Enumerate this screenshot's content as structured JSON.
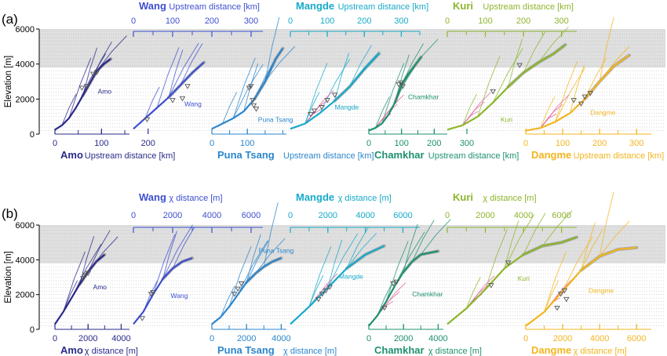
{
  "panel_labels": [
    "(a)",
    "(b)"
  ],
  "colors": {
    "Amo": "#2a2a8a",
    "Wang": "#3d4fcf",
    "Puna Tsang": "#2b86cc",
    "Mangde": "#16aac9",
    "Chamkhar": "#1e9070",
    "Kuri": "#8db52c",
    "Dangme": "#f2b51f",
    "trunk": "#777777",
    "knickpoint": "#555555",
    "pink": "#e0609a",
    "band_dark": "#dcdcdc",
    "band_light": "#f1f1f1"
  },
  "chart_data": [
    {
      "type": "line",
      "panel": "(a)",
      "ylabel": "Elevation [m]",
      "yticks": [
        0,
        2000,
        4000,
        6000
      ],
      "ylim": [
        0,
        6000
      ],
      "gray_band_elevation": [
        3800,
        6000
      ],
      "dotted_band_elevation": [
        0,
        6000
      ],
      "bottom_axis_title": "Upstream distance [km]",
      "top_axis_title": "Upstream distance [km]",
      "series": [
        {
          "name": "Amo",
          "axis": "bottom",
          "ticks": [
            "0",
            "100",
            "200"
          ],
          "tick_values": [
            0,
            100,
            200
          ],
          "max": 160,
          "main": {
            "x": [
              0,
              15,
              30,
              45,
              60,
              75,
              90,
              105,
              120
            ],
            "y": [
              250,
              500,
              900,
              1500,
              2200,
              2900,
              3600,
              4000,
              4300
            ]
          },
          "tribs": 6,
          "knickpoints": [
            [
              58,
              2600
            ],
            [
              68,
              2700
            ],
            [
              82,
              3400
            ],
            [
              90,
              3500
            ]
          ],
          "label": "Amo",
          "label_at": [
            92,
            2300
          ]
        },
        {
          "name": "Wang",
          "axis": "top",
          "ticks": [
            "0",
            "100",
            "200",
            "300"
          ],
          "tick_values": [
            0,
            100,
            200,
            300
          ],
          "max": 330,
          "main": {
            "x": [
              200,
              230,
              260,
              290,
              320,
              350,
              380
            ],
            "y": [
              300,
              900,
              1500,
              2100,
              2800,
              3500,
              4100
            ]
          },
          "tribs": 5,
          "knickpoints": [
            [
              235,
              800
            ],
            [
              300,
              1900
            ],
            [
              325,
              2000
            ],
            [
              338,
              2700
            ]
          ],
          "label": "Wang",
          "label_at": [
            330,
            1600
          ]
        },
        {
          "name": "Puna Tsang",
          "axis": "bottom",
          "ticks": [
            "0",
            "100"
          ],
          "tick_values": [
            0,
            100
          ],
          "max": 210,
          "main": {
            "x": [
              0,
              30,
              60,
              90,
              120,
              150,
              180,
              200
            ],
            "y": [
              300,
              600,
              900,
              1300,
              2000,
              3000,
              4300,
              4900
            ]
          },
          "tribs": 7,
          "knickpoints": [
            [
              105,
              2600
            ],
            [
              110,
              2700
            ],
            [
              115,
              1900
            ],
            [
              118,
              1600
            ],
            [
              125,
              1400
            ]
          ],
          "label": "Puna Tsang",
          "label_at": [
            130,
            700
          ]
        },
        {
          "name": "Mangde",
          "axis": "top",
          "ticks": [
            "0",
            "100",
            "200",
            "300"
          ],
          "tick_values": [
            0,
            100,
            200,
            300
          ],
          "max": 350,
          "main": {
            "x": [
              200,
              240,
              280,
              320,
              360,
              400,
              440
            ],
            "y": [
              300,
              600,
              1200,
              1900,
              2700,
              3700,
              4600
            ]
          },
          "tribs": 6,
          "knickpoints": [
            [
              255,
              1100
            ],
            [
              265,
              1300
            ],
            [
              285,
              1500
            ],
            [
              300,
              1900
            ],
            [
              320,
              2200
            ]
          ],
          "label": "Mangde",
          "label_at": [
            320,
            1400
          ]
        },
        {
          "name": "Chamkhar",
          "axis": "bottom",
          "ticks": [
            "0",
            "100",
            "200",
            "300"
          ],
          "tick_values": [
            0,
            100,
            200,
            300
          ],
          "max": 240,
          "main": {
            "x": [
              0,
              20,
              40,
              60,
              80,
              100,
              120,
              140,
              160
            ],
            "y": [
              200,
              350,
              600,
              1100,
              1800,
              2800,
              3400,
              3900,
              4400
            ]
          },
          "tribs": 6,
          "knickpoints": [
            [
              92,
              2800
            ],
            [
              98,
              2900
            ],
            [
              104,
              2700
            ]
          ],
          "label": "Chamkhar",
          "label_at": [
            120,
            2000
          ]
        },
        {
          "name": "Kuri",
          "axis": "top",
          "ticks": [
            "0",
            "100",
            "200",
            "300"
          ],
          "tick_values": [
            0,
            100,
            200,
            300
          ],
          "max": 340,
          "main": {
            "x": [
              0,
              40,
              80,
              120,
              160,
              200,
              240,
              280,
              310
            ],
            "y": [
              250,
              500,
              1000,
              1800,
              2700,
              3500,
              4100,
              4600,
              5100
            ]
          },
          "tribs": 6,
          "knickpoints": [
            [
              120,
              2400
            ],
            [
              190,
              3900
            ]
          ],
          "label": "Kuri",
          "label_at": [
            140,
            700
          ]
        },
        {
          "name": "Dangme",
          "axis": "bottom",
          "ticks": [
            "0",
            "100",
            "200",
            "300"
          ],
          "tick_values": [
            0,
            100,
            200,
            300
          ],
          "max": 340,
          "main": {
            "x": [
              0,
              40,
              80,
              120,
              160,
              200,
              240,
              280
            ],
            "y": [
              200,
              350,
              700,
              1200,
              2000,
              3000,
              3900,
              4500
            ]
          },
          "tribs": 7,
          "knickpoints": [
            [
              130,
              1900
            ],
            [
              150,
              1700
            ],
            [
              160,
              2100
            ],
            [
              175,
              2300
            ]
          ],
          "label": "Dangme",
          "label_at": [
            175,
            1100
          ]
        }
      ]
    },
    {
      "type": "line",
      "panel": "(b)",
      "ylabel": "Elevation [m]",
      "yticks": [
        0,
        2000,
        4000,
        6000
      ],
      "ylim": [
        0,
        6000
      ],
      "gray_band_elevation": [
        3800,
        6000
      ],
      "bottom_axis_title": "χ distance [m]",
      "top_axis_title": "χ distance [m]",
      "series": [
        {
          "name": "Amo",
          "axis": "bottom",
          "ticks": [
            "0",
            "2000",
            "4000"
          ],
          "tick_values": [
            0,
            2000,
            4000
          ],
          "max": 4500,
          "main": {
            "x": [
              0,
              500,
              1000,
              1500,
              2000,
              2500,
              3000
            ],
            "y": [
              300,
              1000,
              1800,
              2600,
              3300,
              3900,
              4300
            ]
          },
          "tribs": 6,
          "knickpoints": [
            [
              1700,
              2900
            ],
            [
              1850,
              3100
            ],
            [
              2000,
              3200
            ]
          ],
          "label": "Amo",
          "label_at": [
            2300,
            2300
          ]
        },
        {
          "name": "Wang",
          "axis": "top",
          "ticks": [
            "0",
            "2000",
            "4000",
            "6000"
          ],
          "tick_values": [
            0,
            2000,
            4000,
            6000
          ],
          "max": 6600,
          "main": {
            "x": [
              4500,
              5000,
              5500,
              6000,
              6500,
              7000,
              7500
            ],
            "y": [
              300,
              1000,
              2000,
              2900,
              3500,
              3900,
              4100
            ]
          },
          "tribs": 5,
          "knickpoints": [
            [
              4950,
              600
            ],
            [
              5400,
              2000
            ],
            [
              5500,
              2100
            ]
          ],
          "label": "Wang",
          "label_at": [
            6400,
            1800
          ]
        },
        {
          "name": "Puna Tsang",
          "axis": "bottom",
          "ticks": [
            "0",
            "2000",
            "4000"
          ],
          "tick_values": [
            0,
            2000,
            4000
          ],
          "max": 4300,
          "main": {
            "x": [
              0,
              500,
              1000,
              1500,
              2000,
              2500,
              3000,
              3500,
              4000
            ],
            "y": [
              300,
              700,
              1300,
              2000,
              2700,
              3200,
              3600,
              3900,
              4100
            ]
          },
          "tribs": 7,
          "knickpoints": [
            [
              1300,
              2000
            ],
            [
              1500,
              2300
            ],
            [
              1700,
              2600
            ]
          ],
          "label": "Puna Tsang",
          "label_at": [
            2700,
            4400
          ]
        },
        {
          "name": "Mangde",
          "axis": "top",
          "ticks": [
            "0",
            "2000",
            "4000",
            "6000"
          ],
          "tick_values": [
            0,
            2000,
            4000,
            6000
          ],
          "max": 6900,
          "main": {
            "x": [
              4000,
              5000,
              6000,
              7000,
              8000,
              9000
            ],
            "y": [
              300,
              1300,
              2400,
              3500,
              4300,
              4800
            ]
          },
          "tribs": 6,
          "knickpoints": [
            [
              5500,
              1700
            ],
            [
              5700,
              2000
            ],
            [
              5900,
              2200
            ],
            [
              6100,
              2400
            ]
          ],
          "label": "Mangde",
          "label_at": [
            6600,
            2900
          ]
        },
        {
          "name": "Chamkhar",
          "axis": "bottom",
          "ticks": [
            "0",
            "2000",
            "4000"
          ],
          "tick_values": [
            0,
            2000,
            4000
          ],
          "max": 4300,
          "main": {
            "x": [
              0,
              500,
              1000,
              1500,
              2000,
              2500,
              3000,
              3500,
              4000
            ],
            "y": [
              200,
              800,
              1600,
              2500,
              3300,
              3900,
              4300,
              4400,
              4500
            ]
          },
          "tribs": 6,
          "knickpoints": [
            [
              900,
              1200
            ],
            [
              1400,
              2600
            ],
            [
              1600,
              2700
            ]
          ],
          "label": "Chamkhar",
          "label_at": [
            2500,
            1900
          ]
        },
        {
          "name": "Kuri",
          "axis": "top",
          "ticks": [
            "0",
            "2000",
            "4000",
            "6000"
          ],
          "tick_values": [
            0,
            2000,
            4000,
            6000
          ],
          "max": 6800,
          "main": {
            "x": [
              0,
              1000,
              2000,
              3000,
              4000,
              5000,
              6000,
              6800
            ],
            "y": [
              300,
              1200,
              2300,
              3500,
              4300,
              4800,
              5000,
              5300
            ]
          },
          "tribs": 6,
          "knickpoints": [
            [
              2300,
              2500
            ],
            [
              3200,
              3800
            ]
          ],
          "label": "Kuri",
          "label_at": [
            3700,
            2800
          ]
        },
        {
          "name": "Dangme",
          "axis": "bottom",
          "ticks": [
            "0",
            "2000",
            "4000",
            "6000"
          ],
          "tick_values": [
            0,
            2000,
            4000,
            6000
          ],
          "max": 6800,
          "main": {
            "x": [
              0,
              1000,
              2000,
              3000,
              4000,
              5000,
              6000
            ],
            "y": [
              200,
              1000,
              2200,
              3400,
              4200,
              4600,
              4700
            ]
          },
          "tribs": 7,
          "knickpoints": [
            [
              1900,
              2000
            ],
            [
              2100,
              2200
            ],
            [
              2200,
              1700
            ],
            [
              1700,
              1200
            ]
          ],
          "label": "Dangme",
          "label_at": [
            3400,
            2100
          ]
        }
      ]
    }
  ]
}
